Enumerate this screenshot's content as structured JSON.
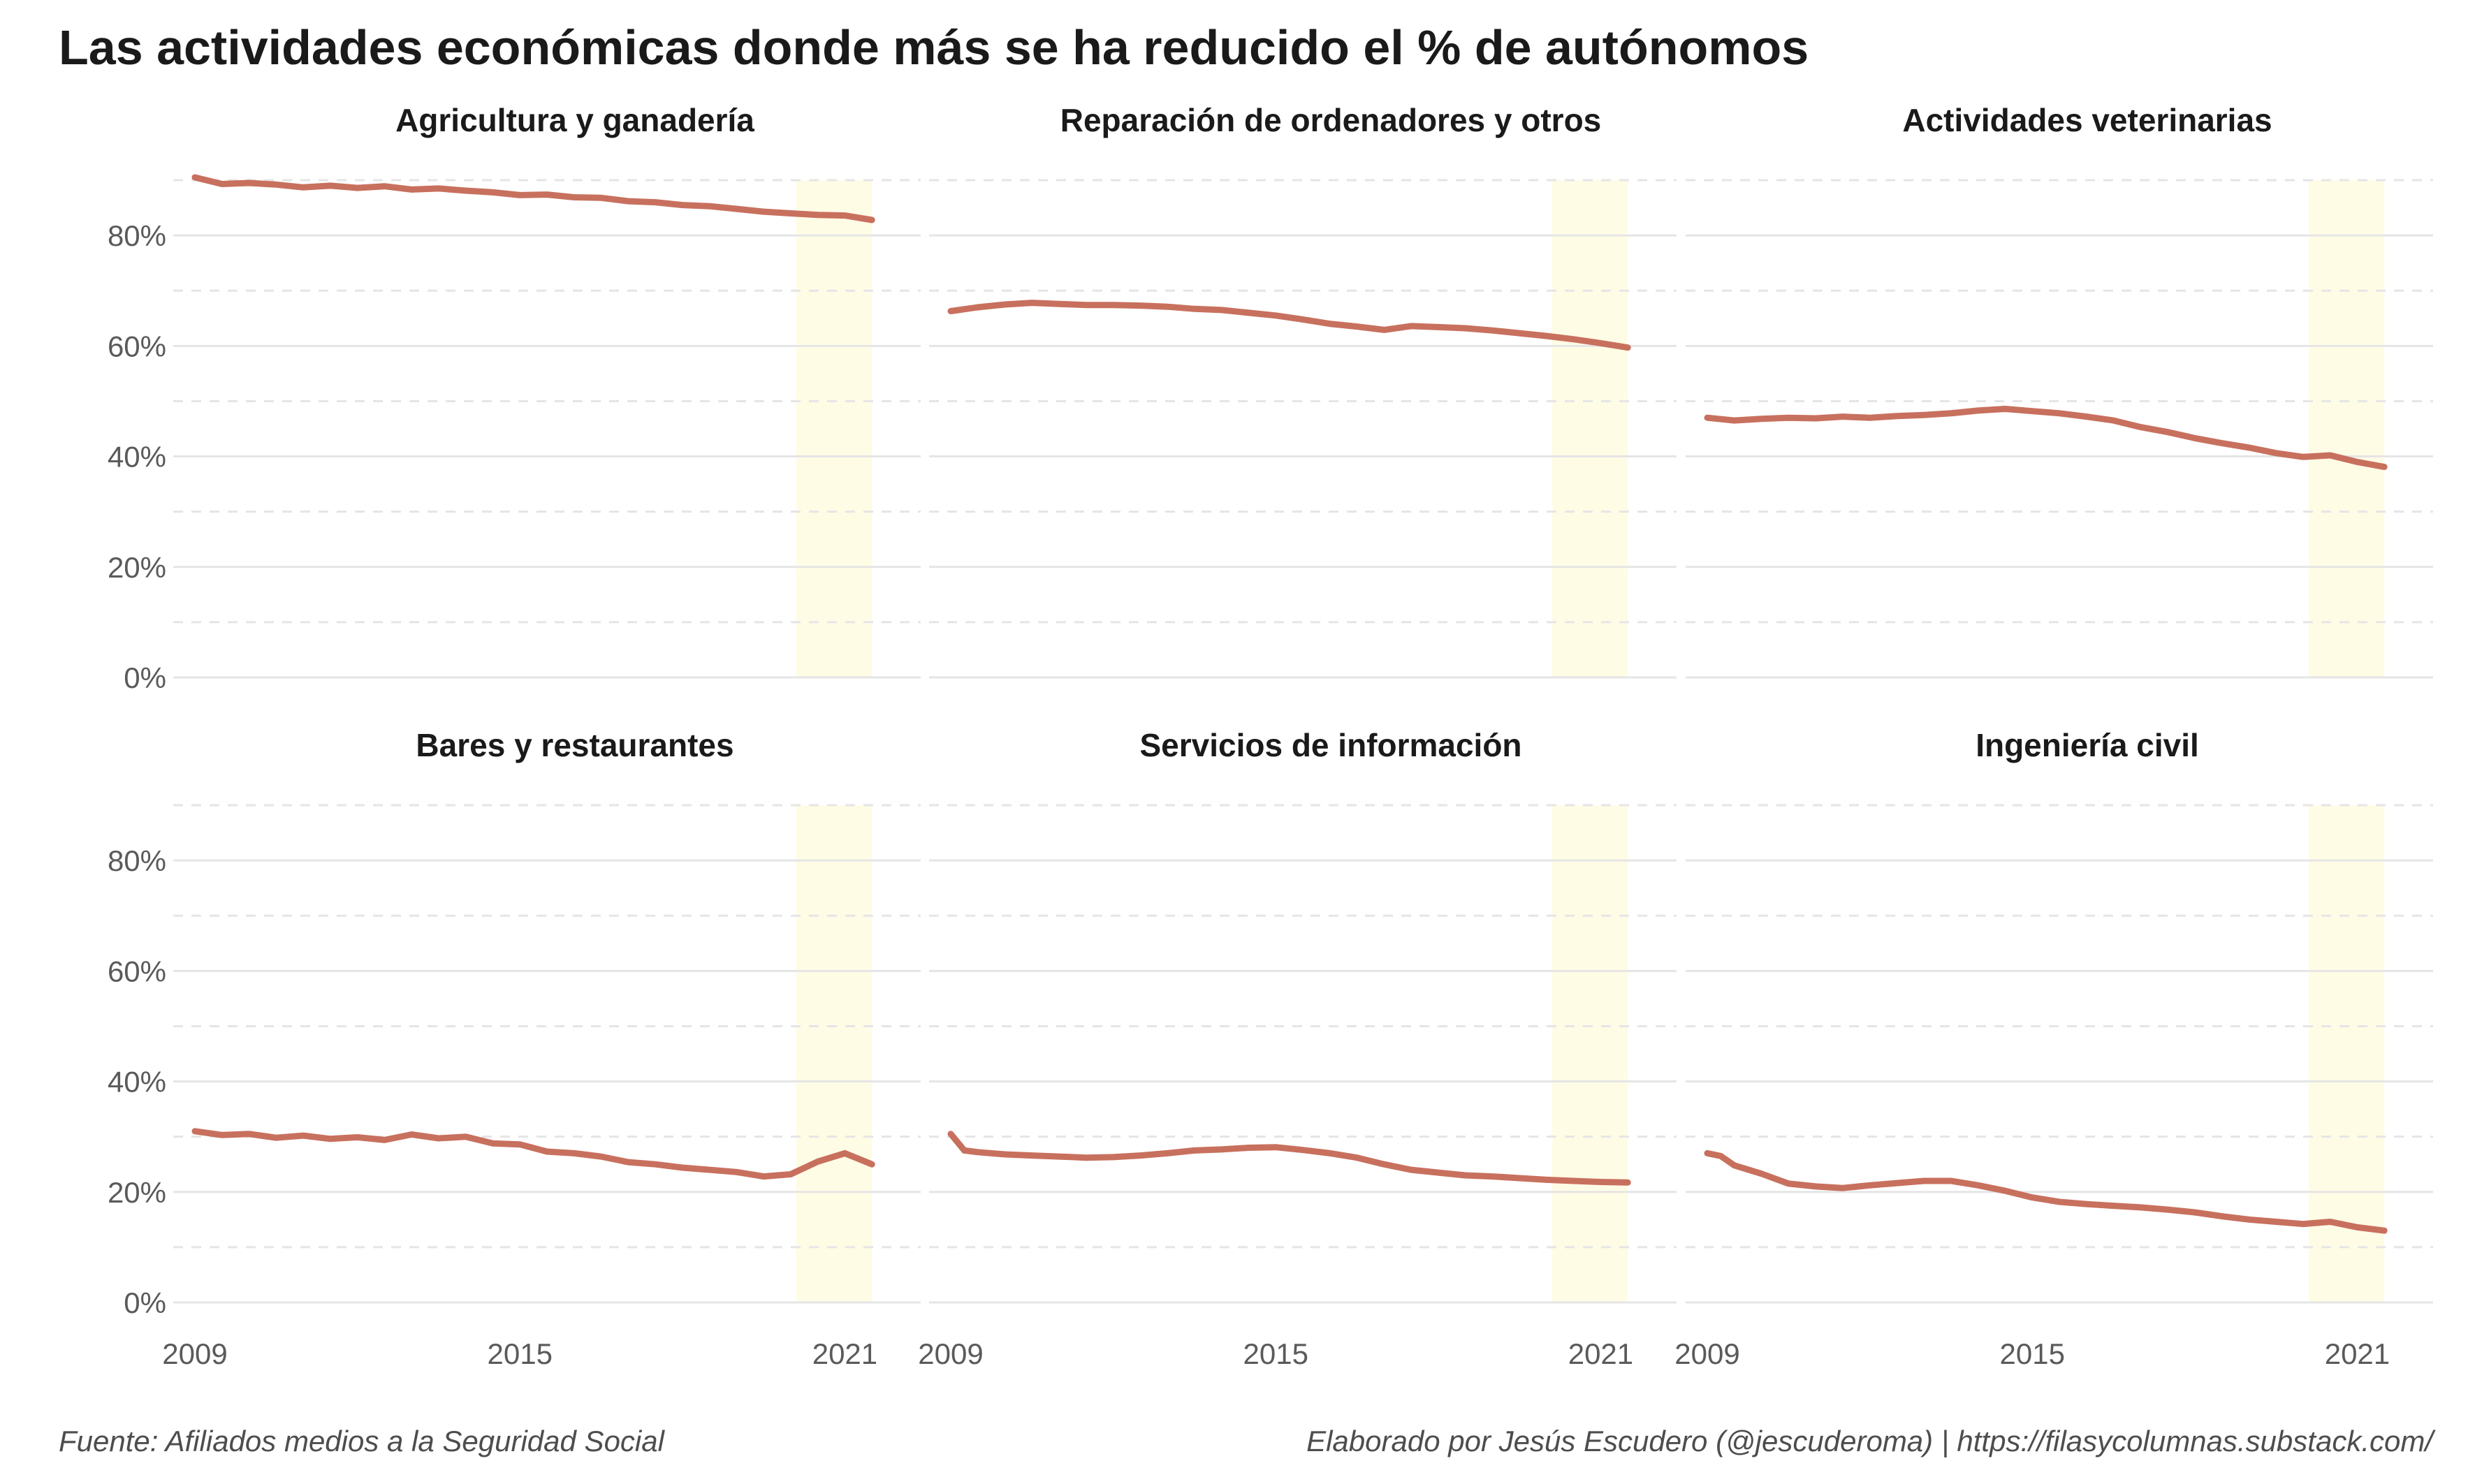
{
  "title": "Las actividades económicas donde más se ha reducido el % de autónomos",
  "caption_left": "Fuente: Afiliados medios a la Seguridad Social",
  "caption_right": "Elaborado por Jesús Escudero (@jescuderoma) | https://filasycolumnas.substack.com/",
  "colors": {
    "line": "#C8705E",
    "highlight": "#FFFCE6",
    "grid": "#E5E5E5"
  },
  "chart_data": {
    "type": "line",
    "facets": [
      "Agricultura y ganadería",
      "Reparación de ordenadores y otros",
      "Actividades veterinarias",
      "Bares y restaurantes",
      "Servicios de información",
      "Ingeniería civil"
    ],
    "x_ticks": [
      2009,
      2015,
      2021
    ],
    "y_ticks": [
      0,
      20,
      40,
      60,
      80
    ],
    "y_tick_labels": [
      "0%",
      "20%",
      "40%",
      "60%",
      "80%"
    ],
    "xlim": [
      2008.6,
      2022.4
    ],
    "ylim": [
      0,
      90
    ],
    "highlight_range": [
      2020.1,
      2021.5
    ],
    "series": [
      {
        "name": "Agricultura y ganadería",
        "x": [
          2009,
          2009.5,
          2010,
          2010.5,
          2011,
          2011.5,
          2012,
          2012.5,
          2013,
          2013.5,
          2014,
          2014.5,
          2015,
          2015.5,
          2016,
          2016.5,
          2017,
          2017.5,
          2018,
          2018.5,
          2019,
          2019.5,
          2020,
          2020.5,
          2021,
          2021.5
        ],
        "values": [
          90.5,
          89.3,
          89.5,
          89.2,
          88.7,
          89.0,
          88.6,
          88.9,
          88.3,
          88.5,
          88.1,
          87.8,
          87.3,
          87.4,
          86.9,
          86.8,
          86.2,
          86.0,
          85.5,
          85.3,
          84.8,
          84.3,
          84.0,
          83.7,
          83.6,
          82.8
        ]
      },
      {
        "name": "Reparación de ordenadores y otros",
        "x": [
          2009,
          2009.5,
          2010,
          2010.5,
          2011,
          2011.5,
          2012,
          2012.5,
          2013,
          2013.5,
          2014,
          2014.5,
          2015,
          2015.5,
          2016,
          2016.5,
          2017,
          2017.5,
          2018,
          2018.5,
          2019,
          2019.5,
          2020,
          2020.5,
          2021,
          2021.5
        ],
        "values": [
          66.3,
          67.0,
          67.5,
          67.8,
          67.6,
          67.4,
          67.4,
          67.3,
          67.1,
          66.7,
          66.5,
          66.0,
          65.5,
          64.8,
          64.0,
          63.5,
          62.9,
          63.6,
          63.4,
          63.2,
          62.8,
          62.3,
          61.8,
          61.2,
          60.5,
          59.7
        ]
      },
      {
        "name": "Actividades veterinarias",
        "x": [
          2009,
          2009.5,
          2010,
          2010.5,
          2011,
          2011.5,
          2012,
          2012.5,
          2013,
          2013.5,
          2014,
          2014.5,
          2015,
          2015.5,
          2016,
          2016.5,
          2017,
          2017.5,
          2018,
          2018.5,
          2019,
          2019.5,
          2020,
          2020.5,
          2021,
          2021.5
        ],
        "values": [
          47.0,
          46.5,
          46.8,
          47.0,
          46.9,
          47.2,
          47.0,
          47.3,
          47.5,
          47.8,
          48.3,
          48.6,
          48.2,
          47.8,
          47.2,
          46.5,
          45.3,
          44.4,
          43.3,
          42.4,
          41.6,
          40.6,
          39.9,
          40.2,
          39.0,
          38.1
        ]
      },
      {
        "name": "Bares y restaurantes",
        "x": [
          2009,
          2009.5,
          2010,
          2010.5,
          2011,
          2011.5,
          2012,
          2012.5,
          2013,
          2013.5,
          2014,
          2014.5,
          2015,
          2015.5,
          2016,
          2016.5,
          2017,
          2017.5,
          2018,
          2018.5,
          2019,
          2019.5,
          2020,
          2020.5,
          2021,
          2021.5
        ],
        "values": [
          31.0,
          30.3,
          30.5,
          29.8,
          30.2,
          29.6,
          29.9,
          29.4,
          30.4,
          29.7,
          30.0,
          28.8,
          28.6,
          27.3,
          27.0,
          26.4,
          25.4,
          25.0,
          24.4,
          24.0,
          23.6,
          22.8,
          23.2,
          25.5,
          27.0,
          25.0
        ]
      },
      {
        "name": "Servicios de información",
        "x": [
          2009,
          2009.25,
          2009.5,
          2010,
          2010.5,
          2011,
          2011.5,
          2012,
          2012.5,
          2013,
          2013.5,
          2014,
          2014.5,
          2015,
          2015.5,
          2016,
          2016.5,
          2017,
          2017.5,
          2018,
          2018.5,
          2019,
          2019.5,
          2020,
          2020.5,
          2021,
          2021.5
        ],
        "values": [
          30.5,
          27.5,
          27.2,
          26.8,
          26.6,
          26.4,
          26.2,
          26.3,
          26.6,
          27.0,
          27.5,
          27.7,
          28.0,
          28.1,
          27.6,
          27.0,
          26.2,
          25.0,
          24.0,
          23.5,
          23.0,
          22.8,
          22.5,
          22.2,
          22.0,
          21.8,
          21.7
        ]
      },
      {
        "name": "Ingeniería civil",
        "x": [
          2009,
          2009.25,
          2009.5,
          2010,
          2010.5,
          2011,
          2011.5,
          2012,
          2012.5,
          2013,
          2013.5,
          2014,
          2014.5,
          2015,
          2015.5,
          2016,
          2016.5,
          2017,
          2017.5,
          2018,
          2018.5,
          2019,
          2019.5,
          2020,
          2020.5,
          2021,
          2021.5
        ],
        "values": [
          27.0,
          26.5,
          24.8,
          23.3,
          21.5,
          21.0,
          20.7,
          21.2,
          21.6,
          22.0,
          22.0,
          21.2,
          20.2,
          19.0,
          18.2,
          17.8,
          17.5,
          17.2,
          16.8,
          16.3,
          15.6,
          15.0,
          14.6,
          14.2,
          14.6,
          13.6,
          13.0
        ]
      }
    ]
  }
}
